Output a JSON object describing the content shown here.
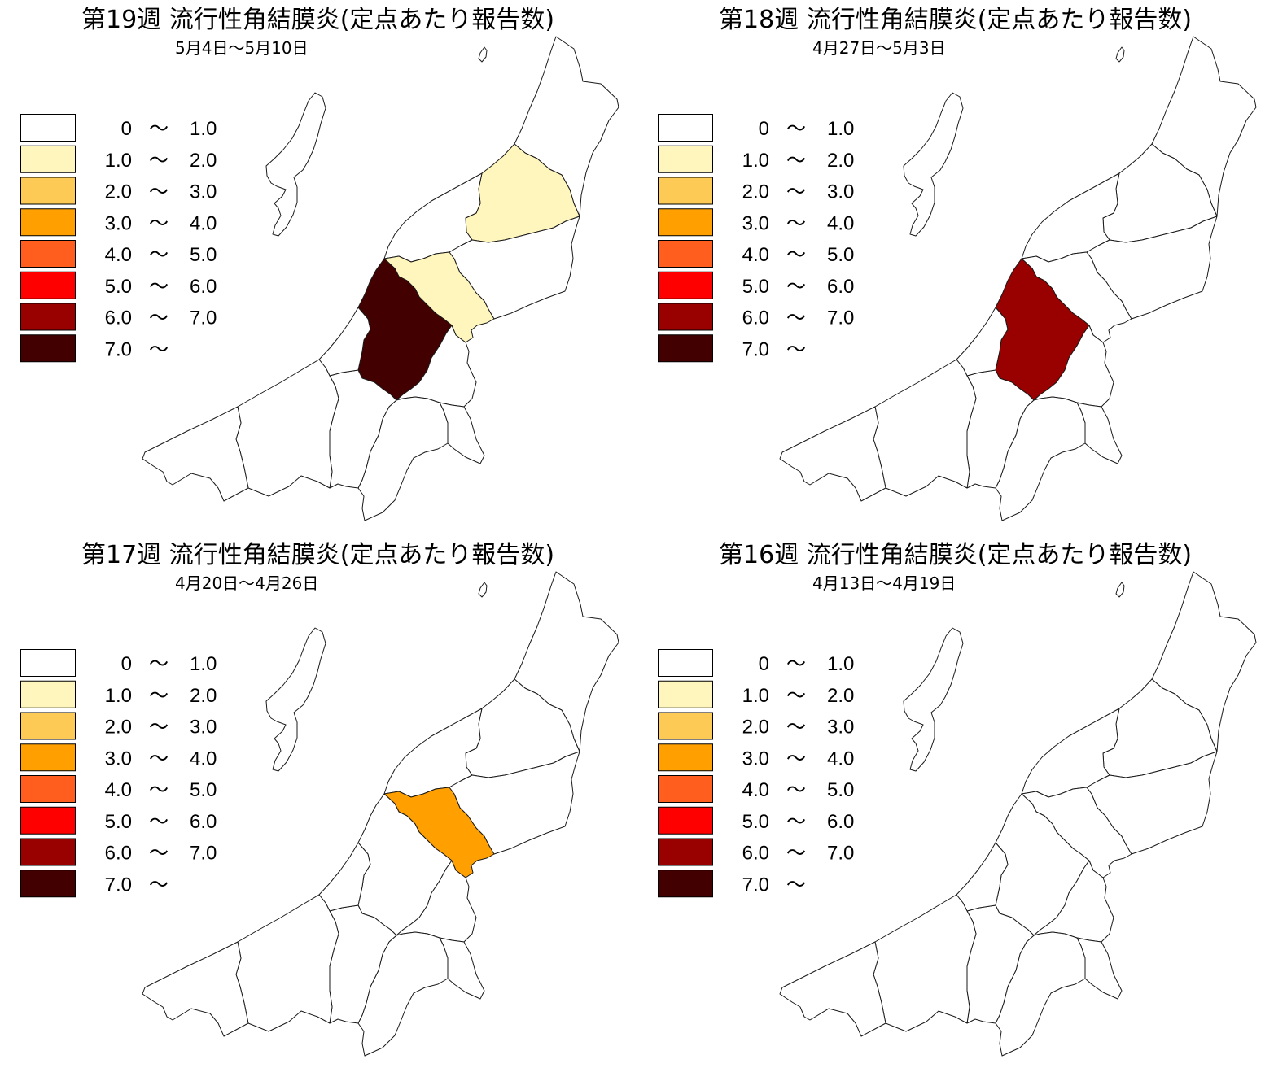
{
  "legend": [
    {
      "low": "0",
      "sep": "～",
      "high": "1.0",
      "color": "#FFFFFF"
    },
    {
      "low": "1.0",
      "sep": "～",
      "high": "2.0",
      "color": "#FFF6BD"
    },
    {
      "low": "2.0",
      "sep": "～",
      "high": "3.0",
      "color": "#FDCB55"
    },
    {
      "low": "3.0",
      "sep": "～",
      "high": "4.0",
      "color": "#FFA000"
    },
    {
      "low": "4.0",
      "sep": "～",
      "high": "5.0",
      "color": "#FF5E1F"
    },
    {
      "low": "5.0",
      "sep": "～",
      "high": "6.0",
      "color": "#FF0000"
    },
    {
      "low": "6.0",
      "sep": "～",
      "high": "7.0",
      "color": "#990000"
    },
    {
      "low": "7.0",
      "sep": "～",
      "color": "#420000"
    }
  ],
  "panels": [
    {
      "title": "第19週 流行性角結膜炎(定点あたり報告数)",
      "date_range": "5月4日～5月10日",
      "region_levels": [
        0,
        0,
        0,
        1,
        0,
        1,
        7,
        0,
        0,
        0,
        0,
        0,
        0,
        0,
        0
      ]
    },
    {
      "title": "第18週 流行性角結膜炎(定点あたり報告数)",
      "date_range": "4月27日～5月3日",
      "region_levels": [
        0,
        0,
        0,
        0,
        0,
        0,
        6,
        0,
        0,
        0,
        0,
        0,
        0,
        0,
        0
      ]
    },
    {
      "title": "第17週 流行性角結膜炎(定点あたり報告数)",
      "date_range": "4月20日～4月26日",
      "region_levels": [
        0,
        0,
        0,
        0,
        0,
        3,
        0,
        0,
        0,
        0,
        0,
        0,
        0,
        0,
        0
      ]
    },
    {
      "title": "第16週 流行性角結膜炎(定点あたり報告数)",
      "date_range": "4月13日～4月19日",
      "region_levels": [
        0,
        0,
        0,
        0,
        0,
        0,
        0,
        0,
        0,
        0,
        0,
        0,
        0,
        0,
        0
      ]
    }
  ]
}
